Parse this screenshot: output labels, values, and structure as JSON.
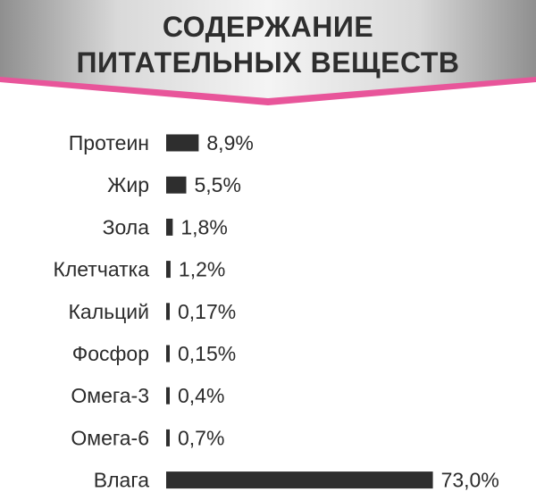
{
  "header": {
    "title_line1": "СОДЕРЖАНИЕ",
    "title_line2": "ПИТАТЕЛЬНЫХ ВЕЩЕСТВ",
    "accent_color": "#e8559a"
  },
  "chart_data": {
    "type": "bar",
    "orientation": "horizontal",
    "unit": "%",
    "bar_color": "#2e2e2e",
    "grid": false,
    "categories": [
      "Протеин",
      "Жир",
      "Зола",
      "Клетчатка",
      "Кальций",
      "Фосфор",
      "Омега-3",
      "Омега-6",
      "Влага"
    ],
    "values": [
      8.9,
      5.5,
      1.8,
      1.2,
      0.17,
      0.15,
      0.4,
      0.7,
      73.0
    ],
    "value_labels": [
      "8,9%",
      "5,5%",
      "1,8%",
      "1,2%",
      "0,17%",
      "0,15%",
      "0,4%",
      "0,7%",
      "73,0%"
    ],
    "note": ""
  }
}
